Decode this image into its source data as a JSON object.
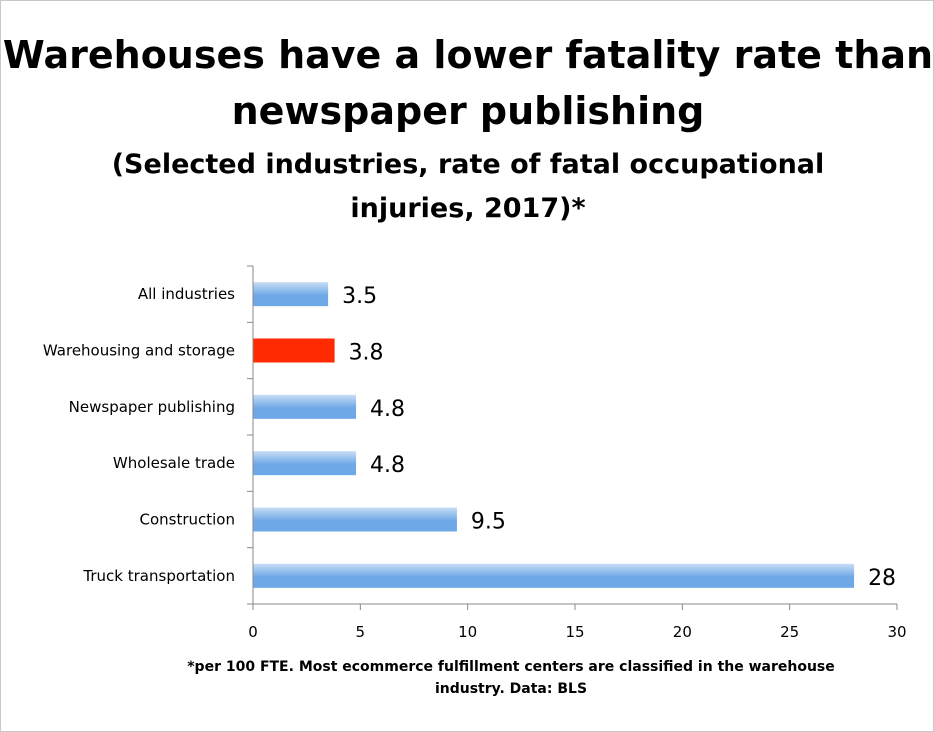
{
  "chart_data": {
    "type": "bar",
    "orientation": "horizontal",
    "title": "Warehouses have a lower fatality rate than newspaper publishing",
    "subtitle": "(Selected industries, rate of fatal occupational injuries, 2017)*",
    "categories": [
      "All industries",
      "Warehousing and storage",
      "Newspaper publishing",
      "Wholesale trade",
      "Construction",
      "Truck transportation"
    ],
    "values": [
      3.5,
      3.8,
      4.8,
      4.8,
      9.5,
      28
    ],
    "data_labels": [
      "3.5",
      "3.8",
      "4.8",
      "4.8",
      "9.5",
      "28"
    ],
    "highlight_index": 1,
    "xlim": [
      0,
      30
    ],
    "x_ticks": [
      0,
      5,
      10,
      15,
      20,
      25,
      30
    ],
    "grid": false,
    "legend": "none",
    "xlabel": "",
    "ylabel": "",
    "footnote": "*per 100 FTE. Most ecommerce fulfillment centers are classified in the warehouse industry. Data: BLS"
  },
  "colors": {
    "bar": "#6fa8e6",
    "bar_light": "#c7ddf6",
    "highlight": "#ff2a00",
    "axis": "#888888"
  }
}
